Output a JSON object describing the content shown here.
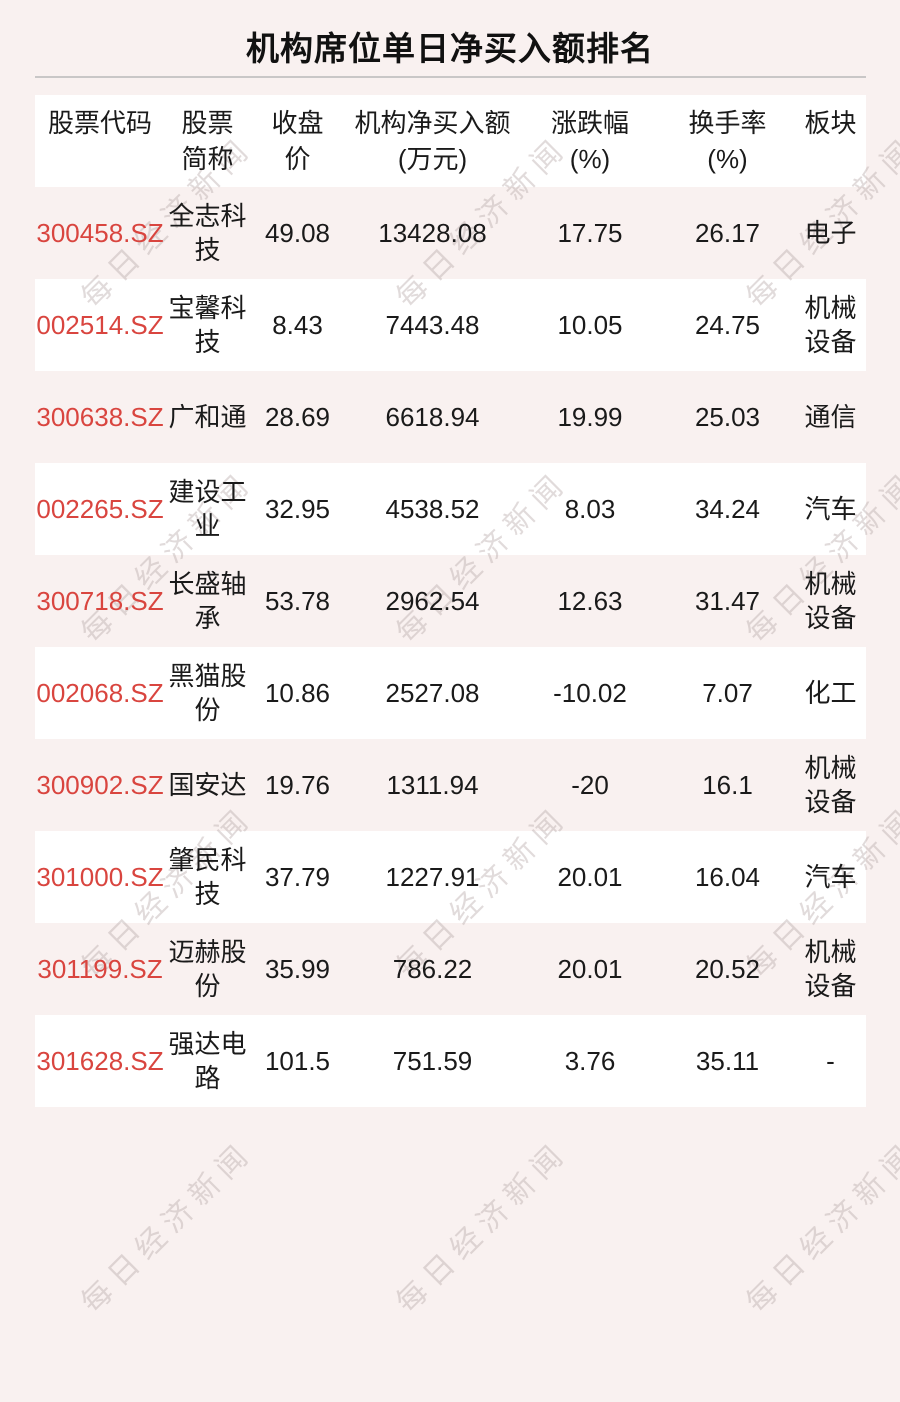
{
  "title": "机构席位单日净买入额排名",
  "watermark": {
    "text": "每日经济新闻"
  },
  "colors": {
    "page_background": "#f9f1f0",
    "row_stripe": "#ffffff",
    "stock_code": "#d9453f",
    "text": "#1a1a1a",
    "divider": "#c9c7c7",
    "watermark": "#b8aaaa"
  },
  "chart_data": {
    "type": "table",
    "title": "机构席位单日净买入额排名",
    "columns": [
      "股票代码",
      "股票\n简称",
      "收盘\n价",
      "机构净买入额\n(万元)",
      "涨跌幅\n(%)",
      "换手率\n(%)",
      "板块"
    ],
    "rows": [
      {
        "code": "300458.SZ",
        "name": "全志科技",
        "close": "49.08",
        "net_buy": "13428.08",
        "change_pct": "17.75",
        "turnover_pct": "26.17",
        "sector": "电子"
      },
      {
        "code": "002514.SZ",
        "name": "宝馨科技",
        "close": "8.43",
        "net_buy": "7443.48",
        "change_pct": "10.05",
        "turnover_pct": "24.75",
        "sector": "机械设备"
      },
      {
        "code": "300638.SZ",
        "name": "广和通",
        "close": "28.69",
        "net_buy": "6618.94",
        "change_pct": "19.99",
        "turnover_pct": "25.03",
        "sector": "通信"
      },
      {
        "code": "002265.SZ",
        "name": "建设工业",
        "close": "32.95",
        "net_buy": "4538.52",
        "change_pct": "8.03",
        "turnover_pct": "34.24",
        "sector": "汽车"
      },
      {
        "code": "300718.SZ",
        "name": "长盛轴承",
        "close": "53.78",
        "net_buy": "2962.54",
        "change_pct": "12.63",
        "turnover_pct": "31.47",
        "sector": "机械设备"
      },
      {
        "code": "002068.SZ",
        "name": "黑猫股份",
        "close": "10.86",
        "net_buy": "2527.08",
        "change_pct": "-10.02",
        "turnover_pct": "7.07",
        "sector": "化工"
      },
      {
        "code": "300902.SZ",
        "name": "国安达",
        "close": "19.76",
        "net_buy": "1311.94",
        "change_pct": "-20",
        "turnover_pct": "16.1",
        "sector": "机械设备"
      },
      {
        "code": "301000.SZ",
        "name": "肇民科技",
        "close": "37.79",
        "net_buy": "1227.91",
        "change_pct": "20.01",
        "turnover_pct": "16.04",
        "sector": "汽车"
      },
      {
        "code": "301199.SZ",
        "name": "迈赫股份",
        "close": "35.99",
        "net_buy": "786.22",
        "change_pct": "20.01",
        "turnover_pct": "20.52",
        "sector": "机械设备"
      },
      {
        "code": "301628.SZ",
        "name": "强达电路",
        "close": "101.5",
        "net_buy": "751.59",
        "change_pct": "3.76",
        "turnover_pct": "35.11",
        "sector": "-"
      }
    ]
  }
}
